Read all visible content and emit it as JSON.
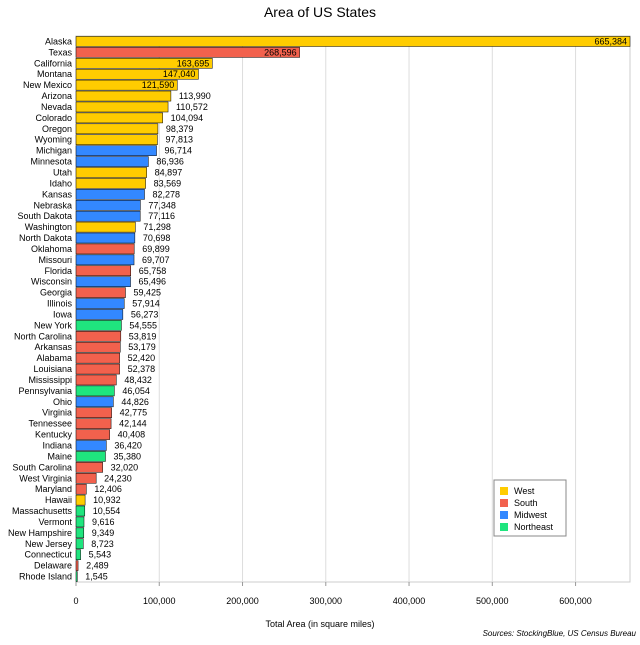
{
  "chart_data": {
    "type": "bar",
    "orientation": "horizontal",
    "title": "Area of US States",
    "xlabel": "Total Area (in square miles)",
    "ylabel": "",
    "xlim": [
      0,
      665384
    ],
    "xticks": [
      0,
      100000,
      200000,
      300000,
      400000,
      500000,
      600000
    ],
    "xtick_labels": [
      "0",
      "100,000",
      "200,000",
      "300,000",
      "400,000",
      "500,000",
      "600,000"
    ],
    "grid": true,
    "legend_position": "bottom-right",
    "source": "Sources: StockingBlue, US Census Bureau",
    "region_colors": {
      "West": "#ffcc00",
      "South": "#f2614d",
      "Midwest": "#3388ff",
      "Northeast": "#1fe57e"
    },
    "legend": [
      "West",
      "South",
      "Midwest",
      "Northeast"
    ],
    "bars": [
      {
        "state": "Alaska",
        "value": 665384,
        "label": "665,384",
        "region": "West"
      },
      {
        "state": "Texas",
        "value": 268596,
        "label": "268,596",
        "region": "South"
      },
      {
        "state": "California",
        "value": 163695,
        "label": "163,695",
        "region": "West"
      },
      {
        "state": "Montana",
        "value": 147040,
        "label": "147,040",
        "region": "West"
      },
      {
        "state": "New Mexico",
        "value": 121590,
        "label": "121,590",
        "region": "West"
      },
      {
        "state": "Arizona",
        "value": 113990,
        "label": "113,990",
        "region": "West"
      },
      {
        "state": "Nevada",
        "value": 110572,
        "label": "110,572",
        "region": "West"
      },
      {
        "state": "Colorado",
        "value": 104094,
        "label": "104,094",
        "region": "West"
      },
      {
        "state": "Oregon",
        "value": 98379,
        "label": "98,379",
        "region": "West"
      },
      {
        "state": "Wyoming",
        "value": 97813,
        "label": "97,813",
        "region": "West"
      },
      {
        "state": "Michigan",
        "value": 96714,
        "label": "96,714",
        "region": "Midwest"
      },
      {
        "state": "Minnesota",
        "value": 86936,
        "label": "86,936",
        "region": "Midwest"
      },
      {
        "state": "Utah",
        "value": 84897,
        "label": "84,897",
        "region": "West"
      },
      {
        "state": "Idaho",
        "value": 83569,
        "label": "83,569",
        "region": "West"
      },
      {
        "state": "Kansas",
        "value": 82278,
        "label": "82,278",
        "region": "Midwest"
      },
      {
        "state": "Nebraska",
        "value": 77348,
        "label": "77,348",
        "region": "Midwest"
      },
      {
        "state": "South Dakota",
        "value": 77116,
        "label": "77,116",
        "region": "Midwest"
      },
      {
        "state": "Washington",
        "value": 71298,
        "label": "71,298",
        "region": "West"
      },
      {
        "state": "North Dakota",
        "value": 70698,
        "label": "70,698",
        "region": "Midwest"
      },
      {
        "state": "Oklahoma",
        "value": 69899,
        "label": "69,899",
        "region": "South"
      },
      {
        "state": "Missouri",
        "value": 69707,
        "label": "69,707",
        "region": "Midwest"
      },
      {
        "state": "Florida",
        "value": 65758,
        "label": "65,758",
        "region": "South"
      },
      {
        "state": "Wisconsin",
        "value": 65496,
        "label": "65,496",
        "region": "Midwest"
      },
      {
        "state": "Georgia",
        "value": 59425,
        "label": "59,425",
        "region": "South"
      },
      {
        "state": "Illinois",
        "value": 57914,
        "label": "57,914",
        "region": "Midwest"
      },
      {
        "state": "Iowa",
        "value": 56273,
        "label": "56,273",
        "region": "Midwest"
      },
      {
        "state": "New York",
        "value": 54555,
        "label": "54,555",
        "region": "Northeast"
      },
      {
        "state": "North Carolina",
        "value": 53819,
        "label": "53,819",
        "region": "South"
      },
      {
        "state": "Arkansas",
        "value": 53179,
        "label": "53,179",
        "region": "South"
      },
      {
        "state": "Alabama",
        "value": 52420,
        "label": "52,420",
        "region": "South"
      },
      {
        "state": "Louisiana",
        "value": 52378,
        "label": "52,378",
        "region": "South"
      },
      {
        "state": "Mississippi",
        "value": 48432,
        "label": "48,432",
        "region": "South"
      },
      {
        "state": "Pennsylvania",
        "value": 46054,
        "label": "46,054",
        "region": "Northeast"
      },
      {
        "state": "Ohio",
        "value": 44826,
        "label": "44,826",
        "region": "Midwest"
      },
      {
        "state": "Virginia",
        "value": 42775,
        "label": "42,775",
        "region": "South"
      },
      {
        "state": "Tennessee",
        "value": 42144,
        "label": "42,144",
        "region": "South"
      },
      {
        "state": "Kentucky",
        "value": 40408,
        "label": "40,408",
        "region": "South"
      },
      {
        "state": "Indiana",
        "value": 36420,
        "label": "36,420",
        "region": "Midwest"
      },
      {
        "state": "Maine",
        "value": 35380,
        "label": "35,380",
        "region": "Northeast"
      },
      {
        "state": "South Carolina",
        "value": 32020,
        "label": "32,020",
        "region": "South"
      },
      {
        "state": "West Virginia",
        "value": 24230,
        "label": "24,230",
        "region": "South"
      },
      {
        "state": "Maryland",
        "value": 12406,
        "label": "12,406",
        "region": "South"
      },
      {
        "state": "Hawaii",
        "value": 10932,
        "label": "10,932",
        "region": "West"
      },
      {
        "state": "Massachusetts",
        "value": 10554,
        "label": "10,554",
        "region": "Northeast"
      },
      {
        "state": "Vermont",
        "value": 9616,
        "label": "9,616",
        "region": "Northeast"
      },
      {
        "state": "New Hampshire",
        "value": 9349,
        "label": "9,349",
        "region": "Northeast"
      },
      {
        "state": "New Jersey",
        "value": 8723,
        "label": "8,723",
        "region": "Northeast"
      },
      {
        "state": "Connecticut",
        "value": 5543,
        "label": "5,543",
        "region": "Northeast"
      },
      {
        "state": "Delaware",
        "value": 2489,
        "label": "2,489",
        "region": "South"
      },
      {
        "state": "Rhode Island",
        "value": 1545,
        "label": "1,545",
        "region": "Northeast"
      }
    ]
  }
}
